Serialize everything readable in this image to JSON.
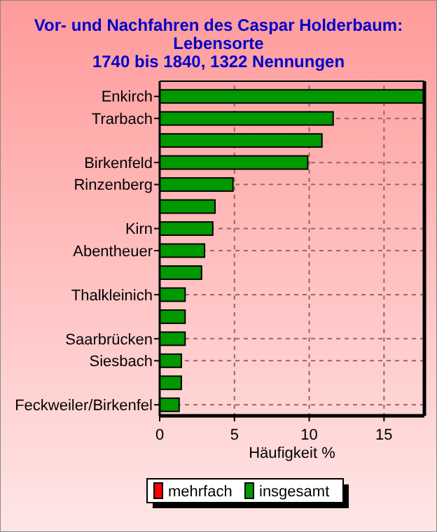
{
  "chart_data": {
    "type": "bar",
    "orientation": "horizontal",
    "title": "Vor- und Nachfahren des Caspar Holderbaum:\nLebensorte\n1740 bis 1840, 1322 Nennungen",
    "xlabel": "Häufigkeit %",
    "categories": [
      "Enkirch",
      "Trarbach",
      null,
      "Birkenfeld",
      "Rinzenberg",
      null,
      "Kirn",
      "Abentheuer",
      null,
      "Thalkleinich",
      null,
      "Saarbrücken",
      "Siesbach",
      null,
      "Feckweiler/Birkenfel"
    ],
    "series": [
      {
        "name": "mehrfach",
        "color": "#ff0000",
        "values": [
          null,
          null,
          null,
          null,
          null,
          null,
          null,
          null,
          null,
          null,
          null,
          null,
          null,
          null,
          null
        ]
      },
      {
        "name": "insgesamt",
        "color": "#009900",
        "values": [
          17.65,
          11.6,
          10.85,
          9.9,
          4.9,
          3.7,
          3.55,
          3.0,
          2.8,
          1.7,
          1.7,
          1.7,
          1.45,
          1.45,
          1.3
        ]
      }
    ],
    "xlim": [
      0,
      17.7
    ],
    "xticks": [
      0,
      5,
      10,
      15
    ],
    "grid": true,
    "legend": "bottom"
  }
}
